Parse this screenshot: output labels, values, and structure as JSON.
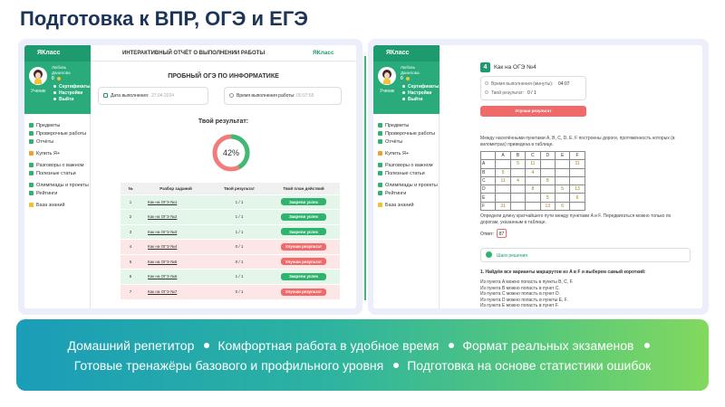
{
  "header": {
    "title": "Подготовка к ВПР, ОГЭ и ЕГЭ"
  },
  "sidebar": {
    "logo": "ЯКласс",
    "user_name": "Любовь Данилова",
    "coins": "0",
    "role": "Ученик",
    "links": [
      "Сертификаты",
      "Настройки",
      "Выйти"
    ],
    "menu": [
      "Предметы",
      "Проверочные работы",
      "Отчёты",
      "Купить Я+",
      "Разговоры о важном",
      "Полезные статьи",
      "Олимпиады и проекты",
      "Рейтинги",
      "База знаний"
    ]
  },
  "report": {
    "heading": "ИНТЕРАКТИВНЫЙ ОТЧЁТ О ВЫПОЛНЕНИИ РАБОТЫ",
    "logo": "ЯКласс",
    "test_title": "ПРОБНЫЙ ОГЭ ПО ИНФОРМАТИКЕ",
    "date_label": "Дата выполнения:",
    "date": "27.04.2024",
    "time_label": "Время выполнения работы:",
    "time": "00:07:55",
    "result_label": "Твой результат:",
    "result": {
      "value": 42,
      "label": "42%"
    },
    "result_colors": {
      "done": "#3dbb74",
      "rest": "#f07c7c"
    },
    "table": {
      "columns": [
        "№",
        "Разбор заданий",
        "Твой результат",
        "Твой план действий"
      ],
      "rows": [
        {
          "n": "1",
          "title": "Как на ОГЭ №1",
          "score": "1 / 1",
          "plan": "Закрепи успех",
          "color": "#2fb36f",
          "bg": "#e4f6e9"
        },
        {
          "n": "2",
          "title": "Как на ОГЭ №2",
          "score": "1 / 1",
          "plan": "Закрепи успех",
          "color": "#2fb36f",
          "bg": "#e4f6e9"
        },
        {
          "n": "3",
          "title": "Как на ОГЭ №3",
          "score": "1 / 1",
          "plan": "Закрепи успех",
          "color": "#2fb36f",
          "bg": "#e4f6e9"
        },
        {
          "n": "4",
          "title": "Как на ОГЭ №4",
          "score": "0 / 1",
          "plan": "Улучши результат",
          "color": "#f06a6a",
          "bg": "#fde6e6"
        },
        {
          "n": "5",
          "title": "Как на ОГЭ №5",
          "score": "0 / 1",
          "plan": "Улучши результат",
          "color": "#f06a6a",
          "bg": "#fde6e6"
        },
        {
          "n": "6",
          "title": "Как на ОГЭ №6",
          "score": "1 / 1",
          "plan": "Закрепи успех",
          "color": "#2fb36f",
          "bg": "#e4f6e9"
        },
        {
          "n": "7",
          "title": "Как на ОГЭ №7",
          "score": "0 / 1",
          "plan": "Улучши результат",
          "color": "#f06a6a",
          "bg": "#fde6e6"
        }
      ]
    }
  },
  "task": {
    "number": "4",
    "title": "Как на ОГЭ №4",
    "time_label": "Время выполнения (минуты):",
    "time": "04:07",
    "result_label": "Твой результат:",
    "result": "0 / 1",
    "button": "Улучши результат",
    "condition": "Между населёнными пунктами A, B, C, D, E, F построены дороги, протяжённость которых (в километрах) приведена в таблице.",
    "table": {
      "columns": [
        "A",
        "B",
        "C",
        "D",
        "E",
        "F"
      ],
      "rows": [
        {
          "label": "A",
          "cells": [
            null,
            5,
            11,
            null,
            null,
            31
          ]
        },
        {
          "label": "B",
          "cells": [
            5,
            null,
            4,
            null,
            null,
            null
          ]
        },
        {
          "label": "C",
          "cells": [
            11,
            4,
            null,
            8,
            null,
            null
          ]
        },
        {
          "label": "D",
          "cells": [
            null,
            null,
            8,
            null,
            5,
            13
          ]
        },
        {
          "label": "E",
          "cells": [
            null,
            null,
            null,
            5,
            null,
            6
          ]
        },
        {
          "label": "F",
          "cells": [
            31,
            null,
            null,
            13,
            6,
            null
          ]
        }
      ]
    },
    "question": "Определи длину кратчайшего пути между пунктами A и F. Передвигаться можно только по дорогам, указанным в таблице.",
    "answer_label": "Ответ:",
    "answer": "87",
    "steps_label": "Шаги решения",
    "step_title": "1. Найдём все варианты маршрутов из A в F и выберем самый короткий:",
    "step_lines": [
      "Из пункта A можно попасть в пункты B, C, F.",
      "Из пункта B можно попасть в пункт C.",
      "Из пункта C можно попасть в пункт D.",
      "Из пункта D можно попасть в пункты E, F.",
      "Из пункта E можно попасть в пункт F."
    ]
  },
  "banner": {
    "lines": [
      [
        "Домашний репетитор",
        "Комфортная работа в удобное время",
        "Формат реальных экзаменов"
      ],
      [
        "Готовые тренажёры базового и профильного уровня",
        "Подготовка на основе статистики ошибок"
      ]
    ]
  }
}
